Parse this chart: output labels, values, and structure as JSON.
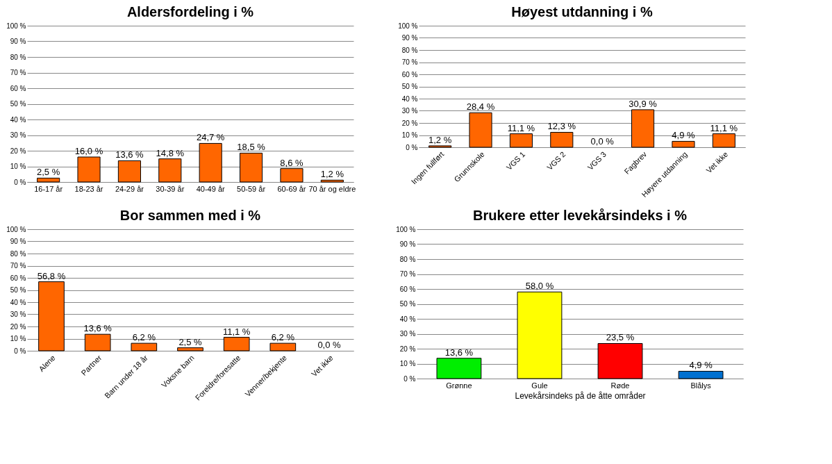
{
  "chart_data": [
    {
      "type": "bar",
      "title": "Aldersfordeling i %",
      "categories": [
        "16-17 år",
        "18-23 år",
        "24-29 år",
        "30-39 år",
        "40-49 år",
        "50-59 år",
        "60-69 år",
        "70 år og eldre"
      ],
      "values": [
        2.5,
        16.0,
        13.6,
        14.8,
        24.7,
        18.5,
        8.6,
        1.2
      ],
      "value_labels": [
        "2,5 %",
        "16,0 %",
        "13,6 %",
        "14,8 %",
        "24,7 %",
        "18,5 %",
        "8,6 %",
        "1,2 %"
      ],
      "color": "#ff6600",
      "ylim": [
        0,
        100
      ],
      "yticks": [
        {
          "value": 0,
          "label": "0 %"
        },
        {
          "value": 10,
          "label": "10 %"
        },
        {
          "value": 20,
          "label": "20 %"
        },
        {
          "value": 30,
          "label": "30 %"
        },
        {
          "value": 40,
          "label": "40 %"
        },
        {
          "value": 50,
          "label": "50 %"
        },
        {
          "value": 60,
          "label": "60 %"
        },
        {
          "value": 70,
          "label": "70 %"
        },
        {
          "value": 80,
          "label": "80 %"
        },
        {
          "value": 90,
          "label": "90 %"
        },
        {
          "value": 100,
          "label": "100 %"
        }
      ],
      "grid": "y"
    },
    {
      "type": "bar",
      "title": "Høyest utdanning i %",
      "categories": [
        "Ingen fullført",
        "Grunnskole",
        "VGS 1",
        "VGS 2",
        "VGS 3",
        "Fagbrev",
        "Høyere utdanning",
        "Vet ikke"
      ],
      "values": [
        1.2,
        28.4,
        11.1,
        12.3,
        0.0,
        30.9,
        4.9,
        11.1
      ],
      "value_labels": [
        "1,2 %",
        "28,4 %",
        "11,1 %",
        "12,3 %",
        "0,0 %",
        "30,9 %",
        "4,9 %",
        "11,1 %"
      ],
      "color": "#ff6600",
      "ylim": [
        0,
        100
      ],
      "yticks": [
        {
          "value": 0,
          "label": "0 %"
        },
        {
          "value": 10,
          "label": "10 %"
        },
        {
          "value": 20,
          "label": "20 %"
        },
        {
          "value": 30,
          "label": "30 %"
        },
        {
          "value": 40,
          "label": "40 %"
        },
        {
          "value": 50,
          "label": "50 %"
        },
        {
          "value": 60,
          "label": "60 %"
        },
        {
          "value": 70,
          "label": "70 %"
        },
        {
          "value": 80,
          "label": "80 %"
        },
        {
          "value": 90,
          "label": "90 %"
        },
        {
          "value": 100,
          "label": "100 %"
        }
      ],
      "grid": "y"
    },
    {
      "type": "bar",
      "title": "Bor sammen med i %",
      "categories": [
        "Alene",
        "Partner",
        "Barn under 18 år",
        "Voksne barn",
        "Foreldre/foresatte",
        "Venner/bekjente",
        "Vet ikke"
      ],
      "values": [
        56.8,
        13.6,
        6.2,
        2.5,
        11.1,
        6.2,
        0.0
      ],
      "value_labels": [
        "56,8 %",
        "13,6 %",
        "6,2 %",
        "2,5 %",
        "11,1 %",
        "6,2 %",
        "0,0 %"
      ],
      "color": "#ff6600",
      "ylim": [
        0,
        100
      ],
      "yticks": [
        {
          "value": 0,
          "label": "0 %"
        },
        {
          "value": 10,
          "label": "10 %"
        },
        {
          "value": 20,
          "label": "20 %"
        },
        {
          "value": 30,
          "label": "30 %"
        },
        {
          "value": 40,
          "label": "40 %"
        },
        {
          "value": 50,
          "label": "50 %"
        },
        {
          "value": 60,
          "label": "60 %"
        },
        {
          "value": 70,
          "label": "70 %"
        },
        {
          "value": 80,
          "label": "80 %"
        },
        {
          "value": 90,
          "label": "90 %"
        },
        {
          "value": 100,
          "label": "100 %"
        }
      ],
      "grid": "y"
    },
    {
      "type": "bar",
      "title": "Brukere etter levekårsindeks i %",
      "xlabel": "Levekårsindeks på de åtte områder",
      "categories": [
        "Grønne",
        "Gule",
        "Røde",
        "Blålys"
      ],
      "values": [
        13.6,
        58.0,
        23.5,
        4.9
      ],
      "value_labels": [
        "13,6 %",
        "58,0 %",
        "23,5 %",
        "4,9 %"
      ],
      "colors": [
        "#00ee00",
        "#ffff00",
        "#ff0000",
        "#0070d0"
      ],
      "ylim": [
        0,
        100
      ],
      "yticks": [
        {
          "value": 0,
          "label": "0 %"
        },
        {
          "value": 10,
          "label": "10 %"
        },
        {
          "value": 20,
          "label": "20 %"
        },
        {
          "value": 30,
          "label": "30 %"
        },
        {
          "value": 40,
          "label": "40 %"
        },
        {
          "value": 50,
          "label": "50 %"
        },
        {
          "value": 60,
          "label": "60 %"
        },
        {
          "value": 70,
          "label": "70 %"
        },
        {
          "value": 80,
          "label": "80 %"
        },
        {
          "value": 90,
          "label": "90 %"
        },
        {
          "value": 100,
          "label": "100 %"
        }
      ],
      "grid": "y"
    }
  ]
}
